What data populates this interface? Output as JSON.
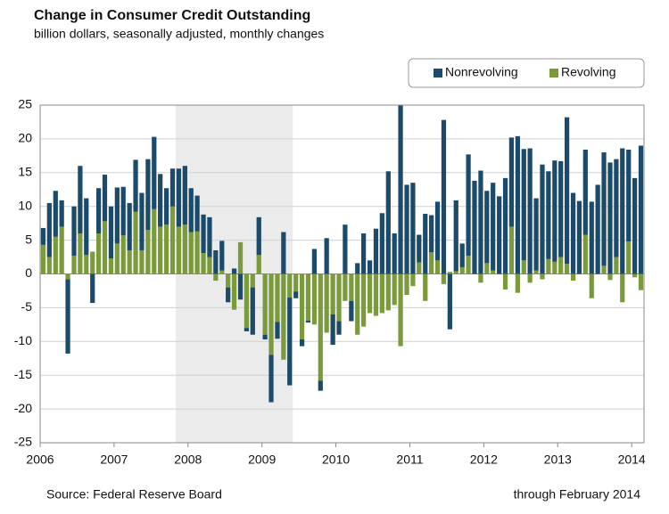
{
  "chart_data": {
    "type": "bar",
    "title": "Change in Consumer Credit Outstanding",
    "subtitle": "billion dollars, seasonally adjusted, monthly changes",
    "source": "Source: Federal Reserve Board",
    "note": "through February 2014",
    "stacked": true,
    "x": [
      2006,
      2006.083,
      2006.167,
      2006.25,
      2006.333,
      2006.417,
      2006.5,
      2006.583,
      2006.667,
      2006.75,
      2006.833,
      2006.917,
      2007,
      2007.083,
      2007.167,
      2007.25,
      2007.333,
      2007.417,
      2007.5,
      2007.583,
      2007.667,
      2007.75,
      2007.833,
      2007.917,
      2008,
      2008.083,
      2008.167,
      2008.25,
      2008.333,
      2008.417,
      2008.5,
      2008.583,
      2008.667,
      2008.75,
      2008.833,
      2008.917,
      2009,
      2009.083,
      2009.167,
      2009.25,
      2009.333,
      2009.417,
      2009.5,
      2009.583,
      2009.667,
      2009.75,
      2009.833,
      2009.917,
      2010,
      2010.083,
      2010.167,
      2010.25,
      2010.333,
      2010.417,
      2010.5,
      2010.583,
      2010.667,
      2010.75,
      2010.833,
      2010.917,
      2011,
      2011.083,
      2011.167,
      2011.25,
      2011.333,
      2011.417,
      2011.5,
      2011.583,
      2011.667,
      2011.75,
      2011.833,
      2011.917,
      2012,
      2012.083,
      2012.167,
      2012.25,
      2012.333,
      2012.417,
      2012.5,
      2012.583,
      2012.667,
      2012.75,
      2012.833,
      2012.917,
      2013,
      2013.083,
      2013.167,
      2013.25,
      2013.333,
      2013.417,
      2013.5,
      2013.583,
      2013.667,
      2013.75,
      2013.833,
      2013.917,
      2014,
      2014.083
    ],
    "series": [
      {
        "name": "Nonrevolving",
        "color": "#1b4a6b",
        "values": [
          2.5,
          8,
          6.8,
          3.9,
          -11,
          7.3,
          10,
          8.4,
          -4.3,
          6.7,
          6.9,
          7.7,
          8.3,
          7.2,
          7,
          7.7,
          8.5,
          10.5,
          10.7,
          7.8,
          5.4,
          5.6,
          8.6,
          8.7,
          6.5,
          5.3,
          5.7,
          5.9,
          3.5,
          4.4,
          -2.2,
          0.8,
          -3.8,
          -0.5,
          -7,
          5.6,
          -0.7,
          -7,
          -2.5,
          6.2,
          -13,
          -1,
          -1,
          -0.3,
          3.7,
          -1.5,
          5.3,
          -4.5,
          -2,
          7.3,
          -3,
          1.6,
          6,
          2,
          6.7,
          9,
          15.2,
          6,
          25,
          13.2,
          13.5,
          4.1,
          8.9,
          5.5,
          8.7,
          22.8,
          -8.2,
          10.5,
          3.5,
          15,
          13.8,
          15.3,
          10.7,
          13,
          11.5,
          14.2,
          13.2,
          20.4,
          16.5,
          18.6,
          10.7,
          16.2,
          13,
          15,
          14.2,
          21.7,
          12,
          10.8,
          12.6,
          10.7,
          13.2,
          16.8,
          16.5,
          14.5,
          18.6,
          13.6,
          14.2,
          19
        ]
      },
      {
        "name": "Revolving",
        "color": "#7a9a3c",
        "values": [
          4.3,
          2.5,
          5.5,
          7,
          -0.8,
          2.7,
          6,
          2.8,
          3.3,
          6,
          7.8,
          2.3,
          4.5,
          5.7,
          3.5,
          9.2,
          3.5,
          6.5,
          9.6,
          7,
          7.3,
          10,
          7,
          7.3,
          6.2,
          6.3,
          3.1,
          2.5,
          -1,
          0.5,
          -2,
          -5.3,
          4.7,
          -8,
          -2,
          2.8,
          -9,
          -12,
          -7.1,
          -12.7,
          -3.5,
          -2.6,
          -9.7,
          -6.9,
          -7.5,
          -15.8,
          -8.7,
          -6,
          -7,
          -4,
          -4,
          -9,
          -7.8,
          -5.8,
          -6.2,
          -5.8,
          -5.4,
          -4.6,
          -10.7,
          -3.1,
          -1.8,
          1.7,
          -4,
          3.2,
          2,
          -1.5,
          0.3,
          0.4,
          1,
          2.7,
          0,
          -1.3,
          1.6,
          0.5,
          0,
          -2.3,
          7,
          -2.8,
          2,
          -1.3,
          0.5,
          -0.8,
          2.2,
          1.8,
          2.5,
          1.5,
          -1,
          0,
          5.8,
          -3.6,
          0,
          1.2,
          -0.9,
          2.5,
          -4.2,
          4.8,
          -0.5,
          -2.4
        ]
      }
    ],
    "shaded": [
      2007.833,
      2009.417
    ],
    "xlim": [
      2006,
      2014.167
    ],
    "xticks": [
      2006,
      2007,
      2008,
      2009,
      2010,
      2011,
      2012,
      2013,
      2014
    ],
    "ylim": [
      -25,
      25
    ],
    "yticks": [
      -25,
      -20,
      -15,
      -10,
      -5,
      0,
      5,
      10,
      15,
      20,
      25
    ],
    "grid": true,
    "legend": "top-right"
  }
}
